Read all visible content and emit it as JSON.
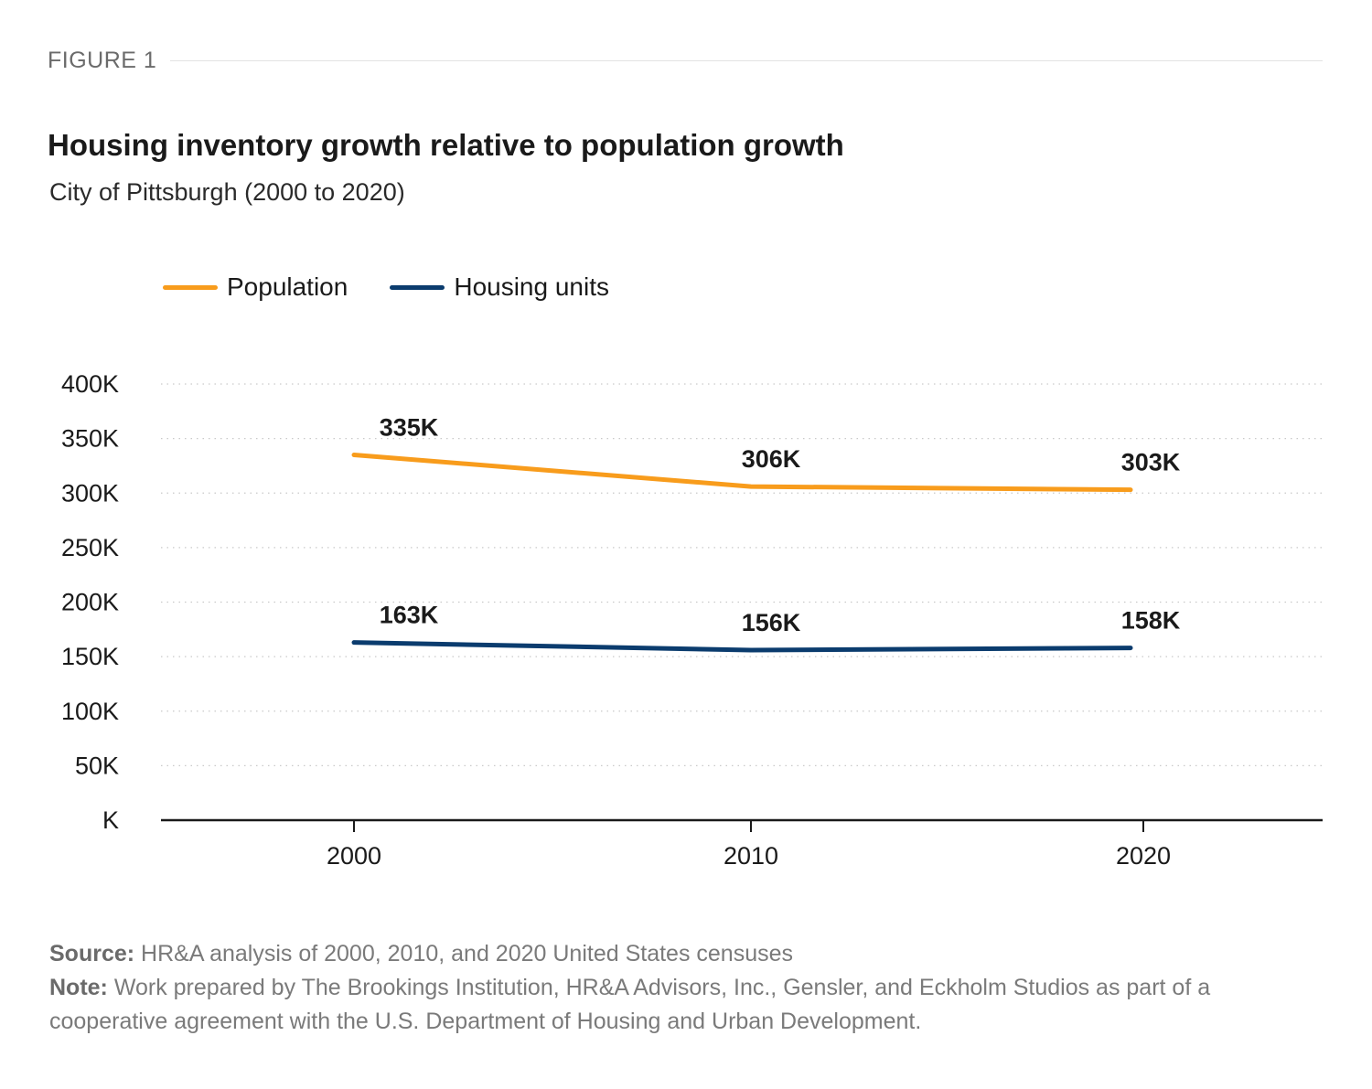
{
  "figure_label": "FIGURE 1",
  "footer": {
    "source_label": "Source:",
    "source_text": " HR&A analysis of 2000, 2010, and 2020 United States censuses",
    "note_label": "Note:",
    "note_text": " Work prepared by The Brookings Institution, HR&A Advisors, Inc., Gensler, and Eckholm Studios as part of a cooperative agreement with the U.S. Department of Housing and Urban Development."
  },
  "chart_data": {
    "type": "line",
    "title": "Housing inventory growth relative to population growth",
    "subtitle": "City of Pittsburgh (2000 to 2020)",
    "x": [
      "2000",
      "2010",
      "2020"
    ],
    "xlabel": "",
    "ylabel": "",
    "ylim": [
      0,
      400000
    ],
    "yticks": [
      0,
      50000,
      100000,
      150000,
      200000,
      250000,
      300000,
      350000,
      400000
    ],
    "ytick_labels": [
      "K",
      "50K",
      "100K",
      "150K",
      "200K",
      "250K",
      "300K",
      "350K",
      "400K"
    ],
    "grid": true,
    "legend_position": "top-left",
    "series": [
      {
        "name": "Population",
        "color": "#f89c1c",
        "values": [
          335000,
          306000,
          303000
        ],
        "labels": [
          "335K",
          "306K",
          "303K"
        ]
      },
      {
        "name": "Housing units",
        "color": "#0b3c6e",
        "values": [
          163000,
          156000,
          158000
        ],
        "labels": [
          "163K",
          "156K",
          "158K"
        ]
      }
    ]
  }
}
